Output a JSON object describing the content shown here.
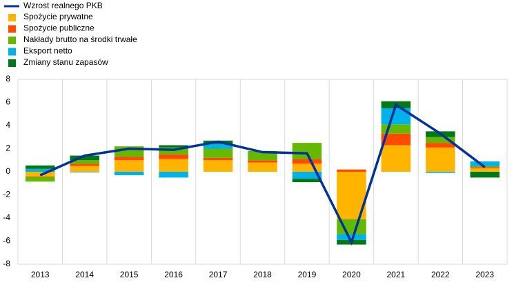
{
  "chart_data": {
    "type": "stacked-bar-line",
    "categories": [
      "2013",
      "2014",
      "2015",
      "2016",
      "2017",
      "2018",
      "2019",
      "2020",
      "2021",
      "2022",
      "2023"
    ],
    "series": [
      {
        "name": "Spożycie prywatne",
        "color": "#ffb400",
        "values": [
          -0.4,
          0.5,
          1.0,
          1.1,
          1.0,
          0.8,
          0.7,
          -4.1,
          2.3,
          2.1,
          0.3
        ]
      },
      {
        "name": "Spożycie publiczne",
        "color": "#ff4b00",
        "values": [
          -0.05,
          0.2,
          0.3,
          0.4,
          0.2,
          0.2,
          0.4,
          0.2,
          1.0,
          0.4,
          0.1
        ]
      },
      {
        "name": "Nakłady brutto na środki trwałe",
        "color": "#65b800",
        "values": [
          -0.4,
          0.3,
          0.9,
          0.6,
          0.8,
          0.8,
          1.4,
          -1.3,
          0.8,
          0.5,
          0.1
        ]
      },
      {
        "name": "Eksport netto",
        "color": "#00b1ea",
        "values": [
          0.25,
          -0.05,
          -0.3,
          -0.5,
          0.4,
          0,
          -0.6,
          -0.5,
          1.4,
          -0.1,
          0.4
        ]
      },
      {
        "name": "Zmiany stanu zapasów",
        "color": "#007816",
        "values": [
          0.3,
          0.4,
          0,
          0.2,
          0.3,
          0,
          -0.3,
          -0.4,
          0.6,
          0.5,
          -0.5
        ]
      }
    ],
    "line": {
      "name": "Wzrost realnego PKB",
      "color": "#003299",
      "values": [
        -0.3,
        1.4,
        2.0,
        1.9,
        2.6,
        1.7,
        1.6,
        -6.1,
        5.8,
        3.3,
        0.4
      ]
    },
    "ylim": [
      -8,
      8
    ],
    "yticks": [
      -8,
      -6,
      -4,
      -2,
      0,
      2,
      4,
      6,
      8
    ]
  }
}
